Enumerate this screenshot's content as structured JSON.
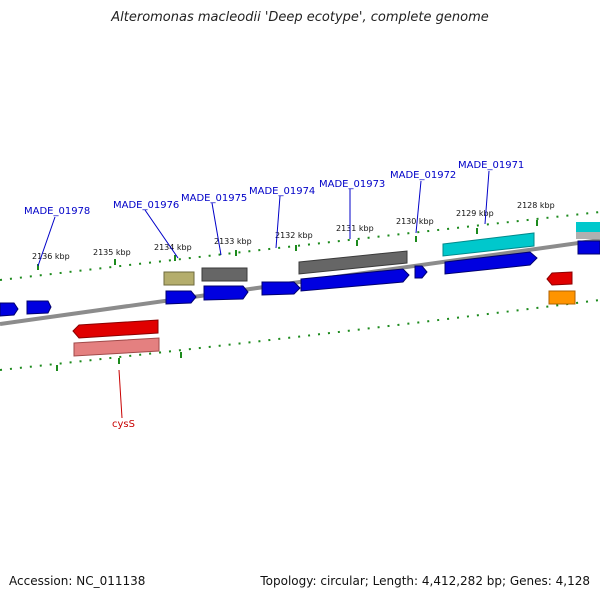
{
  "title": "Alteromonas macleodii 'Deep ecotype', complete genome",
  "footer": {
    "accession": "Accession: NC_011138",
    "summary": "Topology: circular; Length: 4,412,282 bp; Genes: 4,128"
  },
  "colors": {
    "blue": "#0000e0",
    "gray": "#666666",
    "olive": "#b4ad6c",
    "cyan": "#00c8cc",
    "red": "#e00000",
    "pink": "#e48080",
    "orange": "#ff9400",
    "tick_green": "#1c8a1c",
    "backbone": "#8c8c8c",
    "gene_label": "#0000c8",
    "cys_label": "#c80000"
  },
  "ticks": [
    "2136 kbp",
    "2135 kbp",
    "2134 kbp",
    "2133 kbp",
    "2132 kbp",
    "2131 kbp",
    "2130 kbp",
    "2129 kbp",
    "2128 kbp"
  ],
  "gene_labels": [
    "MADE_01978",
    "MADE_01976",
    "MADE_01975",
    "MADE_01974",
    "MADE_01973",
    "MADE_01972",
    "MADE_01971"
  ],
  "cys_label": "cysS"
}
